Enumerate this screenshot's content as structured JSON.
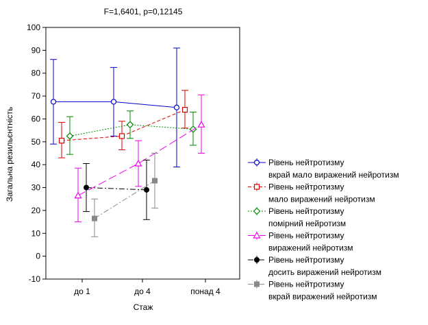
{
  "chart_data": {
    "type": "line",
    "title": "F=1,6401, p=0,12145",
    "xlabel": "Стаж",
    "ylabel": "Загальна резильєнтність",
    "categories": [
      "до 1",
      "до 4",
      "понад 4"
    ],
    "ylim": [
      -10,
      100
    ],
    "yticks": [
      -10,
      0,
      10,
      20,
      30,
      40,
      50,
      60,
      70,
      80,
      90,
      100
    ],
    "grid": false,
    "legend_position": "right",
    "series": [
      {
        "name": "Рівень нейтротизму",
        "sub": "вкрай мало виражений нейротизм",
        "color": "#0000cc",
        "marker": "circle",
        "dash": "solid",
        "values": [
          67.5,
          67.5,
          65
        ],
        "err_low": [
          49,
          52.5,
          39
        ],
        "err_high": [
          86,
          82.5,
          91
        ]
      },
      {
        "name": "Рівень нейтротизму",
        "sub": "мало виражений нейротизм",
        "color": "#dd0000",
        "marker": "square",
        "dash": "dash",
        "values": [
          50.5,
          52.5,
          64
        ],
        "err_low": [
          43,
          46.5,
          56
        ],
        "err_high": [
          58.5,
          59,
          72.5
        ]
      },
      {
        "name": "Рівень нейтротизму",
        "sub": "помірний нейротизм",
        "color": "#008800",
        "marker": "diamond",
        "dash": "dot",
        "values": [
          52.5,
          57.5,
          55.5
        ],
        "err_low": [
          44.5,
          51.5,
          48.5
        ],
        "err_high": [
          61,
          63.5,
          63
        ]
      },
      {
        "name": "Рівень нейтротизму",
        "sub": "виражений нейротизм",
        "color": "#ee00ee",
        "marker": "triangle",
        "dash": "longdash",
        "values": [
          26.5,
          40.5,
          57.5
        ],
        "err_low": [
          15,
          30.5,
          45
        ],
        "err_high": [
          38.5,
          50.5,
          70.5
        ]
      },
      {
        "name": "Рівень нейтротизму",
        "sub": "досить виражений нейротизм",
        "color": "#000000",
        "marker": "filled-circle",
        "dash": "dashdot",
        "values": [
          30,
          29,
          null
        ],
        "err_low": [
          19.5,
          16,
          null
        ],
        "err_high": [
          40.5,
          42,
          null
        ]
      },
      {
        "name": "Рівень нейтротизму",
        "sub": "вкрай виражений нейротизм",
        "color": "#888888",
        "marker": "filled-square",
        "dash": "dashdot",
        "values": [
          16.5,
          33,
          null
        ],
        "err_low": [
          8.5,
          21,
          null
        ],
        "err_high": [
          25,
          45,
          null
        ]
      }
    ]
  }
}
